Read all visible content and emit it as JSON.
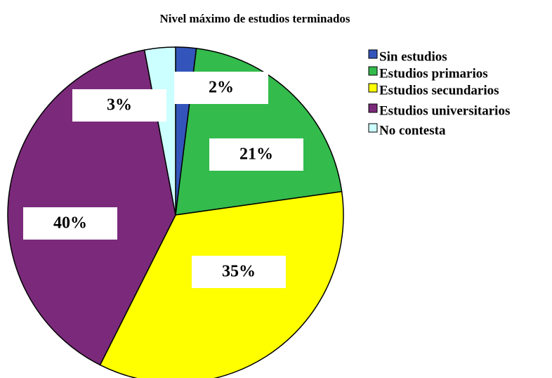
{
  "chart_data": {
    "type": "pie",
    "title": "Nivel máximo de estudios terminados",
    "categories": [
      "Sin estudios",
      "Estudios primarios",
      "Estudios secundarios",
      "Estudios universitarios",
      "No contesta"
    ],
    "values": [
      2,
      21,
      35,
      40,
      3
    ],
    "value_labels": [
      "2%",
      "21%",
      "35%",
      "40%",
      "3%"
    ],
    "colors": [
      "#3355bb",
      "#33bb4c",
      "#ffff00",
      "#7b2a7b",
      "#ccffff"
    ],
    "legend": "right"
  }
}
